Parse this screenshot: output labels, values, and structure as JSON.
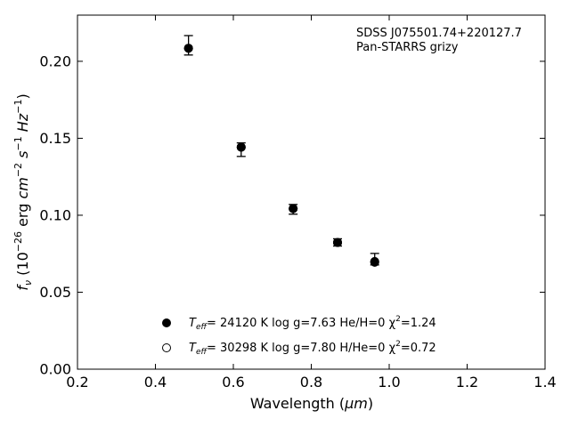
{
  "chart_data": {
    "type": "scatter",
    "xlabel_main": "Wavelength (",
    "xlabel_unit": "μm",
    "xlabel_close": ")",
    "ylabel": {
      "prefix": "f",
      "sub": "ν",
      "part1": " (10",
      "exp1": "−26",
      "part2": " erg ",
      "cm": "cm",
      "exp2": "−2",
      "s": "s",
      "exp3": "−1",
      "hz": "Hz",
      "exp4": "−1",
      "close": ")"
    },
    "annotation": [
      "SDSS J075501.74+220127.7",
      "Pan-STARRS grizy"
    ],
    "xlim": [
      0.2,
      1.4
    ],
    "ylim": [
      0.0,
      0.23
    ],
    "xticks": [
      0.2,
      0.4,
      0.6,
      0.8,
      1.0,
      1.2,
      1.4
    ],
    "xtick_labels": [
      "0.2",
      "0.4",
      "0.6",
      "0.8",
      "1.0",
      "1.2",
      "1.4"
    ],
    "yticks": [
      0.0,
      0.05,
      0.1,
      0.15,
      0.2
    ],
    "ytick_labels": [
      "0.00",
      "0.05",
      "0.10",
      "0.15",
      "0.20"
    ],
    "grid": false,
    "legend_position": "bottom-center",
    "observed": {
      "x": [
        0.4849,
        0.6201,
        0.7535,
        0.8674,
        0.9628
      ],
      "y": [
        0.2085,
        0.1442,
        0.1043,
        0.0823,
        0.07
      ],
      "err_low": [
        0.2041,
        0.1382,
        0.1007,
        0.08,
        0.0677
      ],
      "err_high": [
        0.2167,
        0.147,
        0.107,
        0.0847,
        0.0752
      ]
    },
    "model_he": {
      "x": [
        0.4849,
        0.6201,
        0.7535,
        0.8674,
        0.9628
      ],
      "y": [
        0.2085,
        0.1442,
        0.1043,
        0.0823,
        0.0695
      ]
    },
    "model_h": {
      "x": [
        0.4849,
        0.6201,
        0.7535,
        0.8674,
        0.9628
      ],
      "y": [
        0.2085,
        0.1442,
        0.1043,
        0.0823,
        0.0695
      ]
    },
    "legend": [
      {
        "marker": "filled-circle",
        "T": "T",
        "Tsub": "eff",
        "text": "= 24120 K  log g=7.63  He/H=0  χ",
        "chi_exp": "2",
        "chi_val": "=1.24"
      },
      {
        "marker": "open-circle",
        "T": "T",
        "Tsub": "eff",
        "text": "= 30298 K  log g=7.80  H/He=0  χ",
        "chi_exp": "2",
        "chi_val": "=0.72"
      }
    ]
  }
}
